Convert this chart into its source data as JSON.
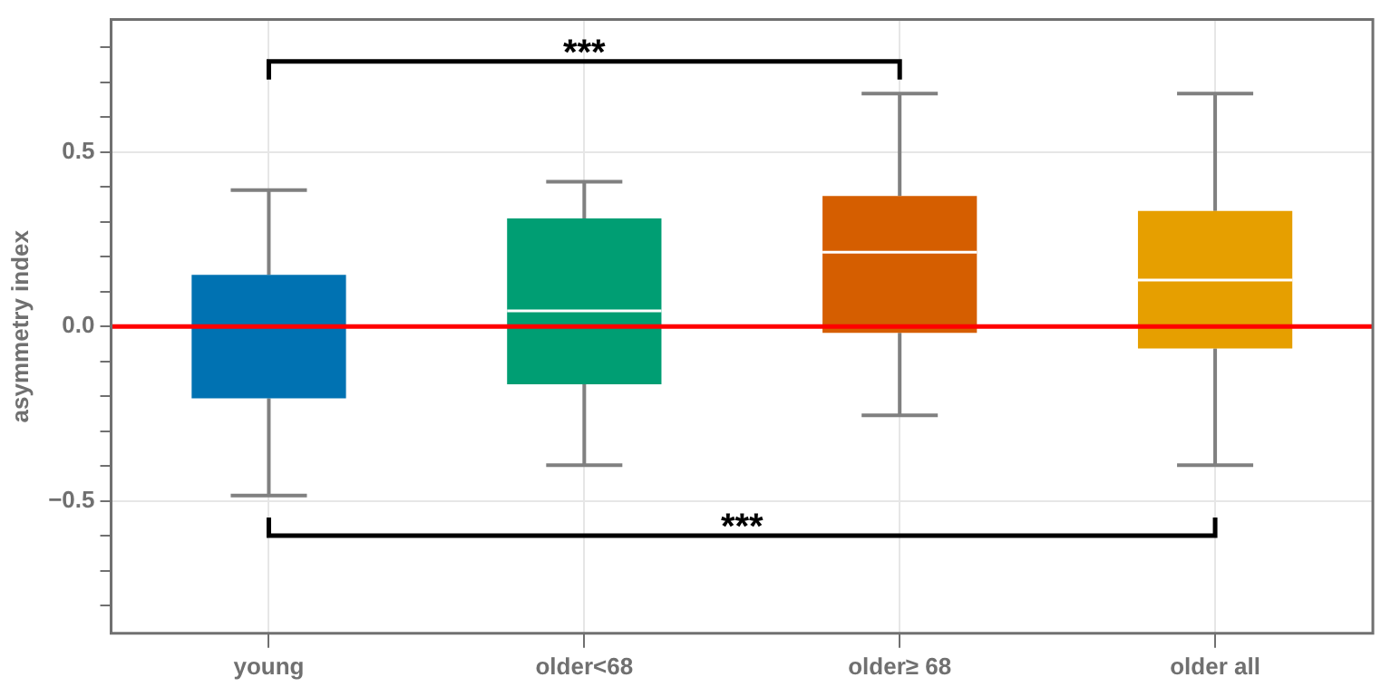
{
  "chart_data": {
    "type": "box",
    "ylabel": "asymmetry index",
    "categories": [
      "young",
      "older<68",
      "older≥ 68",
      "older all"
    ],
    "colors": [
      "#0072b2",
      "#009e73",
      "#d55e00",
      "#e69f00"
    ],
    "boxes": [
      {
        "low": -0.485,
        "q1": -0.206,
        "median": 0.0,
        "q3": 0.148,
        "high": 0.391
      },
      {
        "low": -0.398,
        "q1": -0.166,
        "median": 0.045,
        "q3": 0.31,
        "high": 0.415
      },
      {
        "low": -0.255,
        "q1": -0.018,
        "median": 0.213,
        "q3": 0.374,
        "high": 0.668
      },
      {
        "low": -0.398,
        "q1": -0.063,
        "median": 0.133,
        "q3": 0.331,
        "high": 0.668
      }
    ],
    "ylim": [
      -0.88,
      0.88
    ],
    "yticks": [
      {
        "value": -0.8,
        "label": null
      },
      {
        "value": -0.7,
        "label": null
      },
      {
        "value": -0.6,
        "label": null
      },
      {
        "value": -0.5,
        "label": "−0.5"
      },
      {
        "value": -0.4,
        "label": null
      },
      {
        "value": -0.3,
        "label": null
      },
      {
        "value": -0.2,
        "label": null
      },
      {
        "value": -0.1,
        "label": null
      },
      {
        "value": 0,
        "label": "0.0"
      },
      {
        "value": 0.1,
        "label": null
      },
      {
        "value": 0.2,
        "label": null
      },
      {
        "value": 0.3,
        "label": null
      },
      {
        "value": 0.4,
        "label": null
      },
      {
        "value": 0.5,
        "label": "0.5"
      },
      {
        "value": 0.6,
        "label": null
      },
      {
        "value": 0.7,
        "label": null
      },
      {
        "value": 0.8,
        "label": null
      }
    ],
    "ref_lines": [
      {
        "axis": "y",
        "value": 0,
        "color": "#ff0000"
      }
    ],
    "annotations": [
      "***",
      "***"
    ],
    "grid": true
  }
}
